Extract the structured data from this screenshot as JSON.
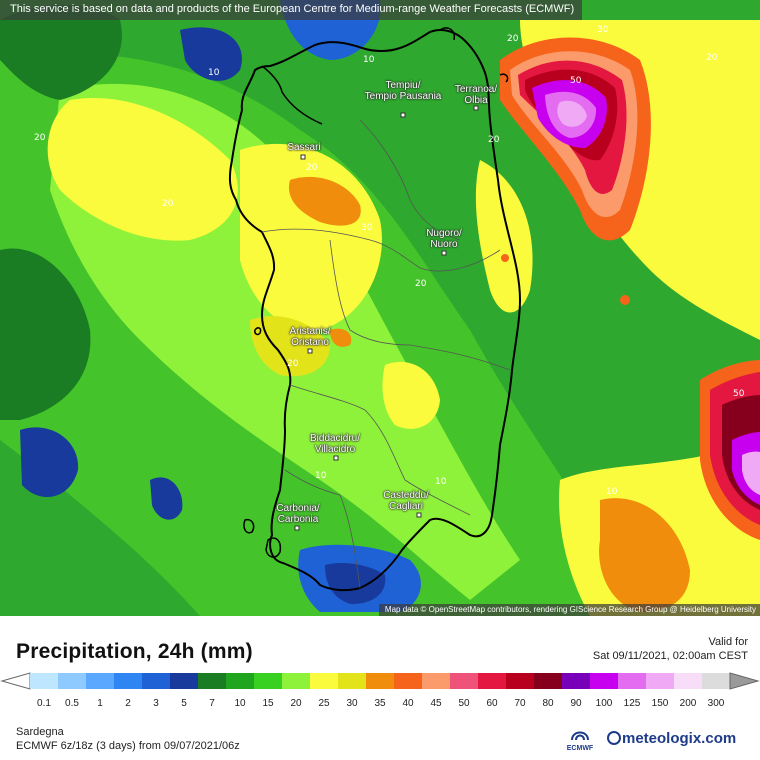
{
  "notice": "This service is based on data and products of the European Centre for Medium-range Weather Forecasts (ECMWF)",
  "attribution": "Map data © OpenStreetMap contributors, rendering GIScience Research Group @ Heidelberg University",
  "title": "Precipitation, 24h (mm)",
  "valid_label": "Valid for",
  "valid_time": "Sat 09/11/2021, 02:00am CEST",
  "region": "Sardegna",
  "model_run": "ECMWF 6z/18z (3 days) from 09/07/2021/06z",
  "logos": {
    "ecmwf": "ECMWF",
    "meteologix": "meteologix.com"
  },
  "cities": [
    {
      "name": "Tempiu/",
      "sub": "Tempio Pausania",
      "key": "tempio"
    },
    {
      "name": "Terranoa/",
      "sub": "Olbia",
      "key": "olbia"
    },
    {
      "name": "Sassari",
      "sub": "",
      "key": "sassari"
    },
    {
      "name": "Nugoro/",
      "sub": "Nuoro",
      "key": "nuoro"
    },
    {
      "name": "Aristanis/",
      "sub": "Oristano",
      "key": "oristano"
    },
    {
      "name": "Biddacidru/",
      "sub": "Villacidro",
      "key": "villacidro"
    },
    {
      "name": "Casteddu/",
      "sub": "Cagliari",
      "key": "cagliari"
    },
    {
      "name": "Carbonia/",
      "sub": "Carbonia",
      "key": "carbonia"
    }
  ],
  "contour_values": [
    "10",
    "10",
    "10",
    "20",
    "20",
    "20",
    "20",
    "20",
    "20",
    "30",
    "30",
    "20",
    "20",
    "50",
    "10",
    "10"
  ],
  "legend": {
    "ticks": [
      "0.1",
      "0.5",
      "1",
      "2",
      "3",
      "5",
      "7",
      "10",
      "15",
      "20",
      "25",
      "30",
      "35",
      "40",
      "45",
      "50",
      "60",
      "70",
      "80",
      "90",
      "100",
      "125",
      "150",
      "200",
      "300"
    ],
    "colors": [
      "#bfe6ff",
      "#8ec9ff",
      "#5aa8ff",
      "#2f86f2",
      "#1f62d6",
      "#173a9c",
      "#1a7d24",
      "#20a51f",
      "#38d021",
      "#8ff23a",
      "#fbfb3e",
      "#e3e319",
      "#f08d0c",
      "#f5641a",
      "#fb9a6a",
      "#f0537a",
      "#e3173f",
      "#b8001e",
      "#86001e",
      "#7800b8",
      "#c800f0",
      "#e46cf0",
      "#f0aaf5",
      "#f8ddf8",
      "#dcdcdc"
    ],
    "over_color": "#9a9a9a"
  },
  "colors": {
    "sea_base": "#2ea82e",
    "land_outline": "#000000"
  }
}
